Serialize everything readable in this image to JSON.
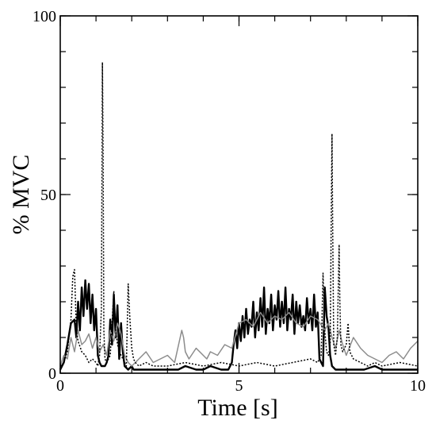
{
  "chart_data": {
    "type": "line",
    "title": "",
    "xlabel": "Time [s]",
    "ylabel": "% MVC",
    "xlim": [
      0,
      10
    ],
    "ylim": [
      0,
      100
    ],
    "x_ticks": [
      0,
      5,
      10
    ],
    "y_ticks": [
      0,
      50,
      100
    ],
    "x_minor_step": 1,
    "y_minor_step": 10,
    "grid": false,
    "legend": "none",
    "series": [
      {
        "style": "solid-thick",
        "color": "#000000",
        "x": [
          0.0,
          0.1,
          0.2,
          0.3,
          0.4,
          0.45,
          0.5,
          0.55,
          0.6,
          0.65,
          0.7,
          0.75,
          0.8,
          0.85,
          0.9,
          0.95,
          1.0,
          1.05,
          1.1,
          1.15,
          1.2,
          1.25,
          1.3,
          1.35,
          1.4,
          1.45,
          1.5,
          1.55,
          1.6,
          1.65,
          1.7,
          1.75,
          1.8,
          1.9,
          2.0,
          2.05,
          2.1,
          2.5,
          3.0,
          3.3,
          3.5,
          3.8,
          4.0,
          4.2,
          4.5,
          4.7,
          4.8,
          4.85,
          4.9,
          4.95,
          5.0,
          5.05,
          5.1,
          5.15,
          5.2,
          5.25,
          5.3,
          5.35,
          5.4,
          5.45,
          5.5,
          5.55,
          5.6,
          5.65,
          5.7,
          5.75,
          5.8,
          5.85,
          5.9,
          5.95,
          6.0,
          6.05,
          6.1,
          6.15,
          6.2,
          6.25,
          6.3,
          6.35,
          6.4,
          6.45,
          6.5,
          6.55,
          6.6,
          6.65,
          6.7,
          6.75,
          6.8,
          6.85,
          6.9,
          6.95,
          7.0,
          7.05,
          7.1,
          7.15,
          7.2,
          7.25,
          7.3,
          7.35,
          7.4,
          7.45,
          7.5,
          7.55,
          7.6,
          7.7,
          7.8,
          8.0,
          8.2,
          8.5,
          8.8,
          9.0,
          9.3,
          9.6,
          9.8,
          10.0
        ],
        "y": [
          1,
          3,
          8,
          14,
          15,
          10,
          20,
          12,
          24,
          16,
          26,
          18,
          25,
          14,
          22,
          12,
          18,
          5,
          3,
          2,
          2,
          2,
          3,
          5,
          15,
          8,
          22,
          10,
          19,
          4,
          14,
          6,
          2,
          1,
          2,
          1,
          1,
          1,
          1,
          1,
          2,
          1,
          1,
          2,
          1,
          1,
          3,
          8,
          12,
          7,
          14,
          9,
          16,
          10,
          18,
          11,
          15,
          13,
          20,
          10,
          17,
          12,
          21,
          13,
          24,
          11,
          18,
          14,
          22,
          12,
          19,
          15,
          23,
          13,
          20,
          14,
          24,
          12,
          18,
          15,
          22,
          11,
          20,
          14,
          19,
          13,
          16,
          12,
          21,
          14,
          18,
          12,
          22,
          13,
          17,
          4,
          3,
          2,
          24,
          16,
          13,
          5,
          2,
          1,
          1,
          1,
          1,
          1,
          2,
          1,
          1,
          1,
          1,
          1
        ],
        "lw": 2.4
      },
      {
        "style": "solid-gray",
        "color": "#8c8c8c",
        "x": [
          0.0,
          0.1,
          0.2,
          0.3,
          0.4,
          0.5,
          0.6,
          0.7,
          0.8,
          0.9,
          1.0,
          1.1,
          1.2,
          1.3,
          1.4,
          1.5,
          1.6,
          1.7,
          1.8,
          1.9,
          2.0,
          2.1,
          2.2,
          2.4,
          2.6,
          2.8,
          3.0,
          3.2,
          3.4,
          3.45,
          3.5,
          3.6,
          3.8,
          4.0,
          4.1,
          4.2,
          4.4,
          4.6,
          4.8,
          5.0,
          5.2,
          5.4,
          5.6,
          5.8,
          6.0,
          6.2,
          6.4,
          6.6,
          6.8,
          7.0,
          7.2,
          7.4,
          7.5,
          7.6,
          7.7,
          7.8,
          7.9,
          8.0,
          8.2,
          8.4,
          8.6,
          8.8,
          9.0,
          9.2,
          9.4,
          9.6,
          9.8,
          10.0
        ],
        "y": [
          2,
          5,
          4,
          10,
          6,
          12,
          8,
          9,
          11,
          7,
          10,
          6,
          8,
          5,
          12,
          9,
          14,
          11,
          5,
          3,
          2,
          3,
          4,
          6,
          3,
          4,
          5,
          3,
          12,
          10,
          6,
          4,
          7,
          5,
          4,
          6,
          5,
          8,
          7,
          14,
          15,
          13,
          17,
          14,
          16,
          15,
          17,
          14,
          13,
          16,
          15,
          12,
          14,
          10,
          7,
          12,
          8,
          5,
          10,
          7,
          5,
          4,
          3,
          5,
          6,
          4,
          7,
          9
        ],
        "lw": 1.5
      },
      {
        "style": "dotted",
        "color": "#000000",
        "x": [
          0.0,
          0.1,
          0.2,
          0.3,
          0.35,
          0.4,
          0.45,
          0.5,
          0.6,
          0.7,
          0.8,
          0.9,
          1.0,
          1.05,
          1.1,
          1.15,
          1.18,
          1.2,
          1.22,
          1.25,
          1.3,
          1.4,
          1.5,
          1.55,
          1.6,
          1.7,
          1.8,
          1.85,
          1.9,
          1.95,
          2.0,
          2.05,
          2.1,
          2.2,
          2.4,
          2.6,
          2.8,
          3.0,
          3.5,
          4.0,
          4.5,
          5.0,
          5.5,
          6.0,
          6.5,
          7.0,
          7.2,
          7.3,
          7.35,
          7.4,
          7.45,
          7.5,
          7.55,
          7.6,
          7.62,
          7.65,
          7.7,
          7.75,
          7.8,
          7.82,
          7.85,
          7.9,
          8.0,
          8.05,
          8.1,
          8.2,
          8.4,
          8.6,
          8.8,
          9.0,
          9.5,
          10.0
        ],
        "y": [
          2,
          3,
          6,
          15,
          27,
          29,
          12,
          9,
          6,
          5,
          3,
          4,
          3,
          2,
          5,
          18,
          87,
          60,
          12,
          4,
          3,
          5,
          23,
          12,
          8,
          5,
          3,
          2,
          25,
          15,
          7,
          4,
          3,
          2,
          3,
          2,
          2,
          2,
          3,
          2,
          3,
          2,
          3,
          2,
          3,
          4,
          3,
          5,
          28,
          12,
          6,
          5,
          8,
          67,
          40,
          8,
          5,
          10,
          36,
          20,
          8,
          6,
          8,
          14,
          6,
          4,
          3,
          2,
          3,
          2,
          3,
          2
        ],
        "lw": 1.5
      }
    ]
  }
}
